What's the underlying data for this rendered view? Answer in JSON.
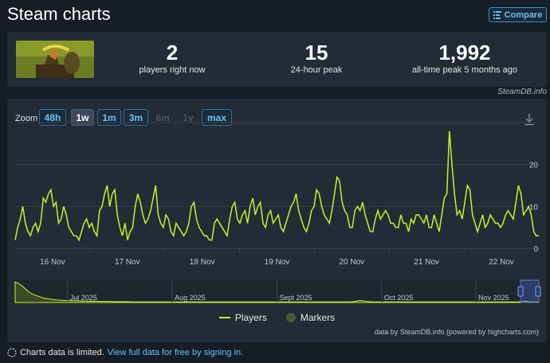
{
  "header": {
    "title": "Steam charts",
    "compare_label": "Compare"
  },
  "stats": [
    {
      "value": "2",
      "label": "players right now"
    },
    {
      "value": "15",
      "label": "24-hour peak"
    },
    {
      "value": "1,992",
      "label": "all-time peak 5 months ago"
    }
  ],
  "watermark": "SteamDB.info",
  "zoom": {
    "label": "Zoom",
    "buttons": [
      {
        "label": "48h",
        "state": "enabled"
      },
      {
        "label": "1w",
        "state": "selected"
      },
      {
        "label": "1m",
        "state": "enabled"
      },
      {
        "label": "3m",
        "state": "enabled"
      },
      {
        "label": "6m",
        "state": "disabled"
      },
      {
        "label": "1y",
        "state": "disabled"
      },
      {
        "label": "max",
        "state": "enabled"
      }
    ]
  },
  "legend": {
    "players": "Players",
    "markers": "Markers"
  },
  "credits": "data by SteamDB.info (powered by highcharts.com)",
  "footer": {
    "text": "Charts data is limited.",
    "link": "View full data for free by signing in."
  },
  "colors": {
    "line": "#ccef2a",
    "marker": "#4b5a2f",
    "background": "#222b36"
  },
  "chart_data": {
    "type": "line",
    "ylim": [
      0,
      30
    ],
    "yticks": [
      0,
      10,
      20
    ],
    "xlim": [
      0,
      7
    ],
    "xticks": [
      {
        "value": 0.5,
        "label": "16 Nov"
      },
      {
        "value": 1.5,
        "label": "17 Nov"
      },
      {
        "value": 2.5,
        "label": "18 Nov"
      },
      {
        "value": 3.5,
        "label": "19 Nov"
      },
      {
        "value": 4.5,
        "label": "20 Nov"
      },
      {
        "value": 5.5,
        "label": "21 Nov"
      },
      {
        "value": 6.5,
        "label": "22 Nov"
      }
    ],
    "series": [
      {
        "name": "Players",
        "values": [
          2,
          5,
          7,
          10,
          6,
          4,
          3,
          5,
          6,
          4,
          6,
          12,
          11,
          13,
          14,
          10,
          11,
          6,
          7,
          10,
          8,
          5,
          4,
          3,
          3,
          2,
          4,
          6,
          7,
          5,
          6,
          4,
          3,
          9,
          10,
          13,
          15,
          10,
          13,
          14,
          8,
          5,
          3,
          6,
          2,
          4,
          5,
          10,
          13,
          11,
          8,
          6,
          7,
          9,
          12,
          15,
          8,
          6,
          5,
          8,
          7,
          4,
          3,
          6,
          5,
          4,
          3,
          4,
          6,
          10,
          11,
          7,
          5,
          4,
          3,
          3,
          2,
          2,
          6,
          7,
          6,
          5,
          4,
          3,
          7,
          10,
          11,
          7,
          6,
          8,
          9,
          6,
          10,
          12,
          8,
          10,
          11,
          6,
          5,
          8,
          9,
          6,
          7,
          8,
          5,
          4,
          6,
          8,
          10,
          11,
          13,
          9,
          7,
          5,
          4,
          6,
          9,
          10,
          14,
          13,
          10,
          8,
          7,
          6,
          9,
          13,
          17,
          16,
          11,
          9,
          8,
          5,
          5,
          9,
          10,
          9,
          11,
          8,
          6,
          4,
          4,
          7,
          9,
          7,
          8,
          9,
          8,
          6,
          6,
          5,
          5,
          8,
          6,
          6,
          4,
          7,
          6,
          8,
          8,
          7,
          6,
          8,
          5,
          5,
          8,
          6,
          4,
          8,
          12,
          13,
          28,
          20,
          13,
          8,
          9,
          7,
          11,
          15,
          14,
          8,
          6,
          4,
          6,
          8,
          5,
          6,
          8,
          7,
          6,
          6,
          5,
          6,
          8,
          9,
          8,
          7,
          11,
          15,
          13,
          8,
          9,
          10,
          8,
          4,
          3,
          3
        ]
      },
      {
        "name": "Markers",
        "values": []
      }
    ],
    "navigator": {
      "xticks": [
        {
          "value": 0.1,
          "label": "Jul 2025"
        },
        {
          "value": 0.3,
          "label": "Aug 2025"
        },
        {
          "value": 0.5,
          "label": "Sept 2025"
        },
        {
          "value": 0.7,
          "label": "Oct 2025"
        },
        {
          "value": 0.88,
          "label": "Nov 2025"
        }
      ],
      "values": [
        100,
        92,
        80,
        65,
        50,
        40,
        33,
        28,
        22,
        18,
        16,
        14,
        12,
        11,
        10,
        9,
        9,
        8,
        8,
        7,
        7,
        6,
        6,
        6,
        5,
        5,
        5,
        5,
        4,
        4,
        4,
        4,
        4,
        3,
        3,
        3,
        3,
        3,
        3,
        3,
        3,
        3,
        3,
        3,
        3,
        3,
        3,
        3,
        3,
        3,
        3,
        3,
        3,
        3,
        3,
        3,
        3,
        3,
        3,
        3,
        3,
        3,
        3,
        3,
        3,
        3,
        3,
        3,
        3,
        3,
        3,
        3,
        3,
        3,
        3,
        3,
        3,
        3,
        3,
        3,
        3,
        3,
        3,
        3,
        3,
        3,
        3,
        3,
        3,
        3,
        3,
        3,
        3,
        3,
        3,
        3,
        4,
        6,
        10,
        8,
        5,
        4,
        3,
        3,
        3,
        3,
        3,
        3,
        3,
        3,
        3,
        3,
        3,
        3,
        3,
        3,
        3,
        3,
        3,
        3,
        3,
        3,
        3,
        3,
        3,
        3,
        3,
        3,
        3,
        3,
        3,
        3,
        3,
        3,
        3,
        3,
        3,
        3,
        3,
        3,
        3,
        3,
        3,
        3,
        4,
        6,
        4,
        3,
        3,
        3
      ],
      "selection": [
        0.965,
        1.0
      ]
    }
  }
}
